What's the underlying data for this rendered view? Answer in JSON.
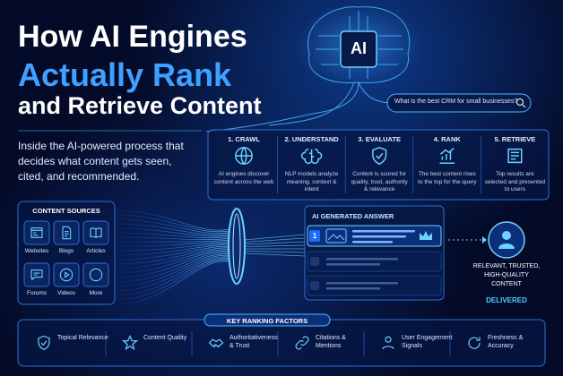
{
  "header": {
    "title_lines": [
      "How AI Engines",
      "Actually Rank",
      "and Retrieve Content"
    ],
    "intro": "Inside the AI-powered process that decides what content gets seen, cited, and recommended."
  },
  "brain": {
    "label": "AI"
  },
  "search": {
    "query": "What is the best CRM for small businesses?"
  },
  "steps": [
    {
      "title": "1. CRAWL",
      "text": "AI engines discover content across the web"
    },
    {
      "title": "2. UNDERSTAND",
      "text": "NLP models analyze meaning, context & intent"
    },
    {
      "title": "3. EVALUATE",
      "text": "Content is scored for quality, trust, authority & relevance"
    },
    {
      "title": "4. RANK",
      "text": "The best content rises to the top for the query"
    },
    {
      "title": "5. RETRIEVE",
      "text": "Top results are selected and presented to users"
    }
  ],
  "sources": {
    "title": "CONTENT SOURCES",
    "items": [
      "Websites",
      "Blogs",
      "Articles",
      "Forums",
      "Videos",
      "More"
    ]
  },
  "answer": {
    "title": "AI GENERATED ANSWER",
    "rank": "1"
  },
  "result": {
    "text": "RELEVANT, TRUSTED, HIGH-QUALITY CONTENT",
    "status": "DELIVERED"
  },
  "factors": {
    "title": "KEY RANKING FACTORS",
    "items": [
      "Topical Relevance",
      "Content Quality",
      "Authoritativeness & Trust",
      "Citations & Mentions",
      "User Engagement Signals",
      "Freshness & Accuracy"
    ]
  }
}
